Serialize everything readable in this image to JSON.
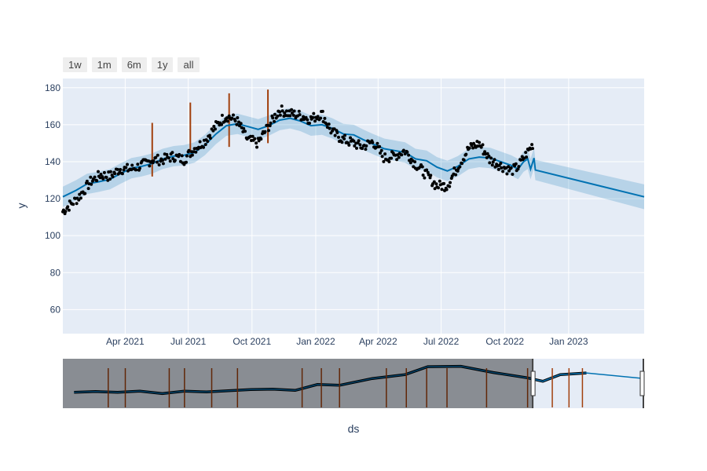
{
  "range_selector": {
    "buttons": [
      "1w",
      "1m",
      "6m",
      "1y",
      "all"
    ]
  },
  "chart_data": {
    "type": "line",
    "title": "",
    "xlabel": "ds",
    "ylabel": "y",
    "ylim": [
      47,
      185
    ],
    "xlim": [
      "2021-01-01",
      "2023-04-20"
    ],
    "grid": true,
    "y_ticks": [
      60,
      80,
      100,
      120,
      140,
      160,
      180
    ],
    "x_ticks": [
      {
        "date": "2021-04-01",
        "label": "Apr 2021"
      },
      {
        "date": "2021-07-01",
        "label": "Jul 2021"
      },
      {
        "date": "2021-10-01",
        "label": "Oct 2021"
      },
      {
        "date": "2022-01-01",
        "label": "Jan 2022"
      },
      {
        "date": "2022-04-01",
        "label": "Apr 2022"
      },
      {
        "date": "2022-07-01",
        "label": "Jul 2022"
      },
      {
        "date": "2022-10-01",
        "label": "Oct 2022"
      },
      {
        "date": "2023-01-01",
        "label": "Jan 2023"
      }
    ],
    "forecast_trend": [
      {
        "x": "2021-01-01",
        "y": 121
      },
      {
        "x": "2021-01-20",
        "y": 124.5
      },
      {
        "x": "2021-02-05",
        "y": 128
      },
      {
        "x": "2021-02-20",
        "y": 129
      },
      {
        "x": "2021-03-10",
        "y": 130.5
      },
      {
        "x": "2021-03-25",
        "y": 133.5
      },
      {
        "x": "2021-04-10",
        "y": 136.5
      },
      {
        "x": "2021-04-25",
        "y": 137.5
      },
      {
        "x": "2021-05-10",
        "y": 139
      },
      {
        "x": "2021-05-25",
        "y": 141.5
      },
      {
        "x": "2021-06-10",
        "y": 143
      },
      {
        "x": "2021-06-25",
        "y": 143.5
      },
      {
        "x": "2021-07-10",
        "y": 145
      },
      {
        "x": "2021-07-25",
        "y": 149
      },
      {
        "x": "2021-08-10",
        "y": 155
      },
      {
        "x": "2021-08-25",
        "y": 159.5
      },
      {
        "x": "2021-09-10",
        "y": 160.5
      },
      {
        "x": "2021-09-25",
        "y": 159
      },
      {
        "x": "2021-10-10",
        "y": 157.5
      },
      {
        "x": "2021-10-25",
        "y": 159.5
      },
      {
        "x": "2021-11-10",
        "y": 162.5
      },
      {
        "x": "2021-11-25",
        "y": 163.5
      },
      {
        "x": "2021-12-10",
        "y": 162
      },
      {
        "x": "2021-12-25",
        "y": 159.5
      },
      {
        "x": "2022-01-10",
        "y": 160
      },
      {
        "x": "2022-01-25",
        "y": 158
      },
      {
        "x": "2022-02-10",
        "y": 155
      },
      {
        "x": "2022-02-25",
        "y": 154.5
      },
      {
        "x": "2022-03-10",
        "y": 152
      },
      {
        "x": "2022-03-25",
        "y": 149.5
      },
      {
        "x": "2022-04-10",
        "y": 147
      },
      {
        "x": "2022-04-25",
        "y": 146
      },
      {
        "x": "2022-05-10",
        "y": 145
      },
      {
        "x": "2022-05-25",
        "y": 141.5
      },
      {
        "x": "2022-06-10",
        "y": 140.5
      },
      {
        "x": "2022-06-25",
        "y": 137
      },
      {
        "x": "2022-07-10",
        "y": 135
      },
      {
        "x": "2022-07-25",
        "y": 137.5
      },
      {
        "x": "2022-08-10",
        "y": 141.5
      },
      {
        "x": "2022-08-25",
        "y": 142.5
      },
      {
        "x": "2022-09-10",
        "y": 142
      },
      {
        "x": "2022-09-25",
        "y": 140
      },
      {
        "x": "2022-10-10",
        "y": 138
      },
      {
        "x": "2022-10-20",
        "y": 136
      },
      {
        "x": "2022-10-28",
        "y": 140
      },
      {
        "x": "2022-11-03",
        "y": 141.5
      },
      {
        "x": "2022-11-07",
        "y": 136
      },
      {
        "x": "2022-11-12",
        "y": 142
      },
      {
        "x": "2022-11-14",
        "y": 135.5
      },
      {
        "x": "2023-04-20",
        "y": 121
      }
    ],
    "uncertainty_halfwidth": 5.5,
    "observed_anchors": [
      {
        "x": "2021-01-01",
        "y": 113
      },
      {
        "x": "2021-01-10",
        "y": 116
      },
      {
        "x": "2021-01-25",
        "y": 121
      },
      {
        "x": "2021-02-10",
        "y": 129
      },
      {
        "x": "2021-02-25",
        "y": 133
      },
      {
        "x": "2021-03-10",
        "y": 132
      },
      {
        "x": "2021-03-25",
        "y": 136
      },
      {
        "x": "2021-04-10",
        "y": 136
      },
      {
        "x": "2021-04-25",
        "y": 138
      },
      {
        "x": "2021-05-10",
        "y": 141
      },
      {
        "x": "2021-05-25",
        "y": 141
      },
      {
        "x": "2021-06-10",
        "y": 143
      },
      {
        "x": "2021-06-25",
        "y": 141
      },
      {
        "x": "2021-07-10",
        "y": 147
      },
      {
        "x": "2021-07-25",
        "y": 151
      },
      {
        "x": "2021-08-10",
        "y": 159
      },
      {
        "x": "2021-08-25",
        "y": 165
      },
      {
        "x": "2021-09-10",
        "y": 162
      },
      {
        "x": "2021-09-25",
        "y": 152
      },
      {
        "x": "2021-10-10",
        "y": 150
      },
      {
        "x": "2021-10-25",
        "y": 159
      },
      {
        "x": "2021-11-10",
        "y": 168
      },
      {
        "x": "2021-11-25",
        "y": 166
      },
      {
        "x": "2021-12-10",
        "y": 165
      },
      {
        "x": "2021-12-25",
        "y": 163
      },
      {
        "x": "2022-01-10",
        "y": 166
      },
      {
        "x": "2022-01-25",
        "y": 156
      },
      {
        "x": "2022-02-10",
        "y": 152
      },
      {
        "x": "2022-02-25",
        "y": 150
      },
      {
        "x": "2022-03-10",
        "y": 148
      },
      {
        "x": "2022-03-25",
        "y": 151
      },
      {
        "x": "2022-04-10",
        "y": 142
      },
      {
        "x": "2022-04-25",
        "y": 143
      },
      {
        "x": "2022-05-10",
        "y": 146
      },
      {
        "x": "2022-05-25",
        "y": 139
      },
      {
        "x": "2022-06-10",
        "y": 133
      },
      {
        "x": "2022-06-25",
        "y": 127
      },
      {
        "x": "2022-07-10",
        "y": 127
      },
      {
        "x": "2022-07-25",
        "y": 137
      },
      {
        "x": "2022-08-10",
        "y": 147
      },
      {
        "x": "2022-08-25",
        "y": 150
      },
      {
        "x": "2022-09-10",
        "y": 141
      },
      {
        "x": "2022-09-25",
        "y": 138
      },
      {
        "x": "2022-10-10",
        "y": 135
      },
      {
        "x": "2022-10-20",
        "y": 137
      },
      {
        "x": "2022-11-01",
        "y": 144
      },
      {
        "x": "2022-11-12",
        "y": 150
      }
    ],
    "changepoints": [
      {
        "x": "2021-05-10",
        "y0": 132,
        "y1": 161
      },
      {
        "x": "2021-07-04",
        "y0": 142,
        "y1": 172
      },
      {
        "x": "2021-08-29",
        "y0": 148,
        "y1": 177
      },
      {
        "x": "2021-10-24",
        "y0": 150,
        "y1": 179
      }
    ],
    "rangeslider": {
      "selected_from": "2022-06-17",
      "selected_to": "2023-04-20",
      "markers": [
        "2019-04-05",
        "2019-05-22",
        "2019-09-20",
        "2019-11-01",
        "2020-01-15",
        "2020-03-26",
        "2020-09-20",
        "2020-11-12",
        "2021-01-01",
        "2021-05-10",
        "2021-07-04",
        "2021-08-29",
        "2021-10-24",
        "2022-02-10",
        "2022-06-03",
        "2022-08-10",
        "2022-09-25",
        "2022-11-01"
      ]
    }
  }
}
